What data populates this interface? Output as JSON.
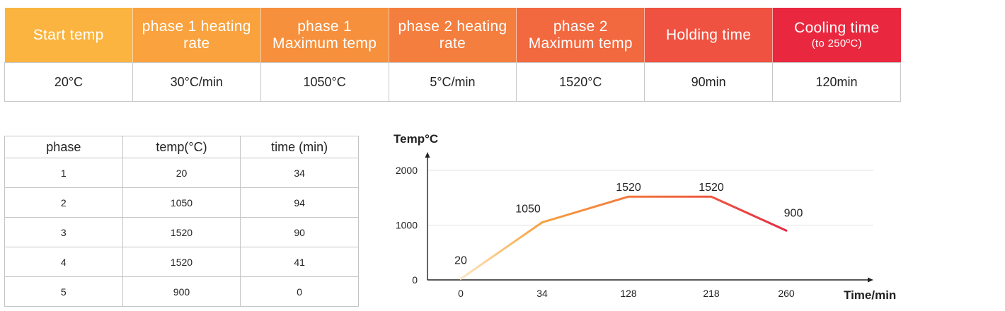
{
  "parameters": {
    "headers": [
      {
        "label": "Start temp",
        "sub": ""
      },
      {
        "label": "phase 1 heating rate",
        "sub": ""
      },
      {
        "label": "phase 1 Maximum temp",
        "sub": ""
      },
      {
        "label": "phase 2 heating rate",
        "sub": ""
      },
      {
        "label": "phase 2 Maximum temp",
        "sub": ""
      },
      {
        "label": "Holding time",
        "sub": ""
      },
      {
        "label": "Cooling time",
        "sub": "(to 250ºC)"
      }
    ],
    "values": [
      "20°C",
      "30°C/min",
      "1050°C",
      "5°C/min",
      "1520°C",
      "90min",
      "120min"
    ],
    "header_colors": [
      "#fab43f",
      "#f9a23e",
      "#f6903d",
      "#f47e3e",
      "#f2683f",
      "#ef5240",
      "#e9283f"
    ]
  },
  "phase_table": {
    "columns": [
      "phase",
      "temp(°C)",
      "time (min)"
    ],
    "rows": [
      [
        "1",
        "20",
        "34"
      ],
      [
        "2",
        "1050",
        "94"
      ],
      [
        "3",
        "1520",
        "90"
      ],
      [
        "4",
        "1520",
        "41"
      ],
      [
        "5",
        "900",
        "0"
      ]
    ]
  },
  "chart_data": {
    "type": "line",
    "ylabel": "Temp°C",
    "xlabel": "Time/min",
    "x_ticks": [
      "0",
      "34",
      "128",
      "218",
      "260"
    ],
    "y_ticks": [
      0,
      1000,
      2000
    ],
    "ylim": [
      0,
      2000
    ],
    "grid": true,
    "series": [
      {
        "points": [
          {
            "x": "0",
            "y": 20
          },
          {
            "x": "34",
            "y": 1050
          },
          {
            "x": "128",
            "y": 1520
          },
          {
            "x": "218",
            "y": 1520
          },
          {
            "x": "260",
            "y": 900
          }
        ],
        "point_labels": [
          "20",
          "1050",
          "1520",
          "1520",
          "900"
        ]
      }
    ],
    "line_gradient": [
      "#fde7c4",
      "#f6a03a",
      "#f27a3d",
      "#ee5a40",
      "#e42b45"
    ]
  }
}
